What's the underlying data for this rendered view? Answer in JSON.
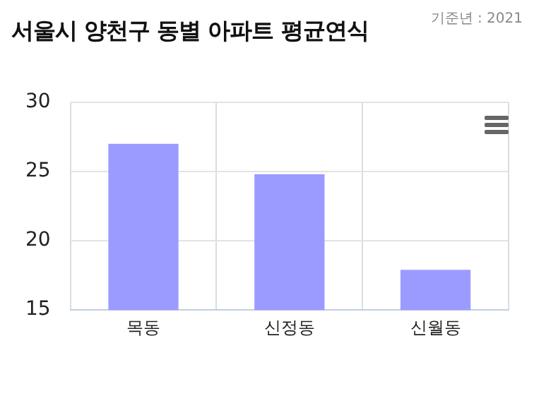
{
  "chart_data": {
    "type": "bar",
    "title": "서울시 양천구 동별 아파트 평균연식",
    "subtitle": "기준년 : 2021",
    "categories": [
      "목동",
      "신정동",
      "신월동"
    ],
    "values": [
      27.0,
      24.8,
      17.9
    ],
    "color": "#9b9bff",
    "ylim": [
      15,
      30
    ],
    "yticks": [
      15,
      20,
      25,
      30
    ],
    "grid": true,
    "legend": false
  }
}
